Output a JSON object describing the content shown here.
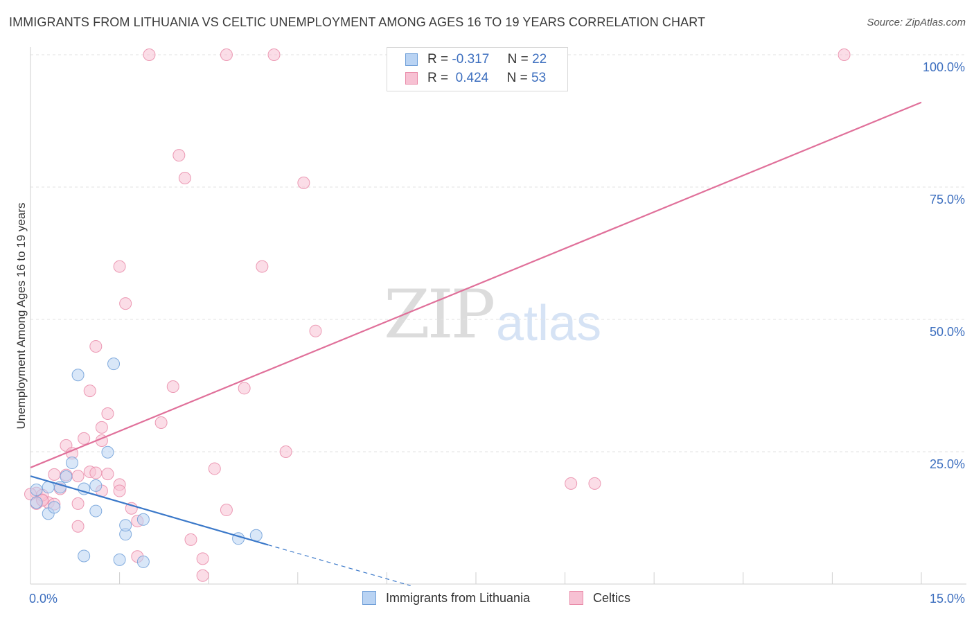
{
  "title": "IMMIGRANTS FROM LITHUANIA VS CELTIC UNEMPLOYMENT AMONG AGES 16 TO 19 YEARS CORRELATION CHART",
  "source": "Source: ZipAtlas.com",
  "watermark": {
    "zip": "ZIP",
    "atlas": "atlas"
  },
  "colors": {
    "blue_fill": "#b9d3f3",
    "blue_stroke": "#6f9fd8",
    "blue_line": "#3a78c9",
    "pink_fill": "#f7c1d3",
    "pink_stroke": "#e98aa8",
    "pink_line": "#e0709a",
    "tick_text": "#3d6fbf",
    "grid": "#e2e2e2"
  },
  "legend_top": {
    "rows": [
      {
        "r_label": "R =",
        "r_value": "-0.317",
        "n_label": "N =",
        "n_value": "22"
      },
      {
        "r_label": "R =",
        "r_value": " 0.424",
        "n_label": "N =",
        "n_value": "53"
      }
    ]
  },
  "legend_bottom": {
    "items": [
      "Immigrants from Lithuania",
      "Celtics"
    ]
  },
  "chart_data": {
    "type": "scatter",
    "title": "IMMIGRANTS FROM LITHUANIA VS CELTIC UNEMPLOYMENT AMONG AGES 16 TO 19 YEARS CORRELATION CHART",
    "xlabel": "",
    "ylabel": "Unemployment Among Ages 16 to 19 years",
    "xlim": [
      0,
      15
    ],
    "ylim": [
      0,
      100
    ],
    "x_tick_labels": [
      "0.0%",
      "15.0%"
    ],
    "y_tick_labels": [
      "25.0%",
      "50.0%",
      "75.0%",
      "100.0%"
    ],
    "y_ticks": [
      25,
      50,
      75,
      100
    ],
    "x_minor_ticks": [
      1.5,
      3.0,
      4.5,
      6.0,
      7.5,
      9.0,
      10.5,
      12.0,
      13.5,
      15.0
    ],
    "grid": true,
    "series": [
      {
        "name": "Immigrants from Lithuania",
        "R": -0.317,
        "N": 22,
        "points": [
          [
            0.1,
            17.8
          ],
          [
            0.1,
            15.4
          ],
          [
            0.3,
            18.3
          ],
          [
            0.3,
            13.3
          ],
          [
            0.4,
            14.5
          ],
          [
            0.5,
            18.3
          ],
          [
            0.6,
            20.3
          ],
          [
            0.7,
            22.9
          ],
          [
            0.8,
            39.5
          ],
          [
            0.9,
            18.0
          ],
          [
            0.9,
            5.3
          ],
          [
            1.1,
            18.6
          ],
          [
            1.1,
            13.8
          ],
          [
            1.3,
            24.9
          ],
          [
            1.4,
            41.6
          ],
          [
            1.5,
            4.6
          ],
          [
            1.6,
            9.4
          ],
          [
            1.6,
            11.1
          ],
          [
            1.9,
            12.2
          ],
          [
            1.9,
            4.2
          ],
          [
            3.5,
            8.6
          ],
          [
            3.8,
            9.2
          ]
        ],
        "trend": {
          "x": [
            0,
            4.0
          ],
          "y": [
            20.4,
            7.4
          ],
          "dashed_extension": {
            "x": [
              4.0,
              6.4
            ],
            "y": [
              7.4,
              -0.3
            ]
          }
        }
      },
      {
        "name": "Celtics",
        "R": 0.424,
        "N": 53,
        "points": [
          [
            2.0,
            100.0
          ],
          [
            3.3,
            100.0
          ],
          [
            4.1,
            100.0
          ],
          [
            13.7,
            100.0
          ],
          [
            2.5,
            81.0
          ],
          [
            2.6,
            76.7
          ],
          [
            4.6,
            75.8
          ],
          [
            1.5,
            60.0
          ],
          [
            3.9,
            60.0
          ],
          [
            1.6,
            53.0
          ],
          [
            4.8,
            47.8
          ],
          [
            1.1,
            44.9
          ],
          [
            2.4,
            37.3
          ],
          [
            3.6,
            37.0
          ],
          [
            1.0,
            36.5
          ],
          [
            1.3,
            32.2
          ],
          [
            2.2,
            30.5
          ],
          [
            1.2,
            29.6
          ],
          [
            0.9,
            27.5
          ],
          [
            1.2,
            27.1
          ],
          [
            0.6,
            26.2
          ],
          [
            4.3,
            25.0
          ],
          [
            0.7,
            24.7
          ],
          [
            3.1,
            21.8
          ],
          [
            1.0,
            21.2
          ],
          [
            1.3,
            20.8
          ],
          [
            0.4,
            20.7
          ],
          [
            0.6,
            20.6
          ],
          [
            0.8,
            20.4
          ],
          [
            1.5,
            18.8
          ],
          [
            9.1,
            19.0
          ],
          [
            9.5,
            19.0
          ],
          [
            0.5,
            18.0
          ],
          [
            1.2,
            17.6
          ],
          [
            1.5,
            17.6
          ],
          [
            0.1,
            17.2
          ],
          [
            0.2,
            15.9
          ],
          [
            0.3,
            15.4
          ],
          [
            0.1,
            15.2
          ],
          [
            0.8,
            15.2
          ],
          [
            1.7,
            14.3
          ],
          [
            3.3,
            14.0
          ],
          [
            1.8,
            11.9
          ],
          [
            0.8,
            10.9
          ],
          [
            2.7,
            8.4
          ],
          [
            1.8,
            5.2
          ],
          [
            2.9,
            4.8
          ],
          [
            2.9,
            1.6
          ],
          [
            0.2,
            16.8
          ],
          [
            0.0,
            17.0
          ],
          [
            0.4,
            15.1
          ],
          [
            1.1,
            21.0
          ],
          [
            0.2,
            15.8
          ]
        ],
        "trend": {
          "x": [
            0,
            15.0
          ],
          "y": [
            22.0,
            91.0
          ]
        }
      }
    ]
  }
}
